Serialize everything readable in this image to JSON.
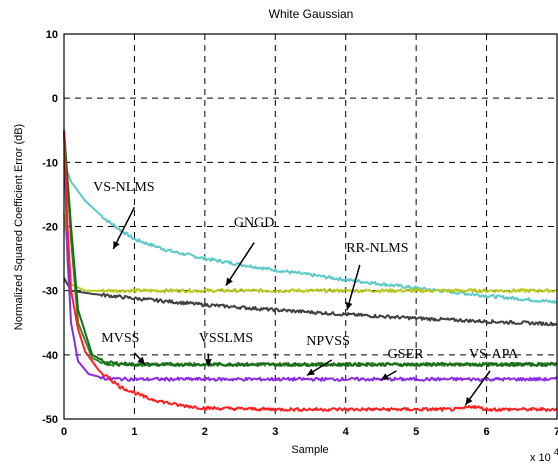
{
  "chart_data": {
    "type": "line",
    "title": "White Gaussian",
    "xlabel": "Sample",
    "ylabel": "Normalized Squared Coefficient Error (dB)",
    "x_multiplier": "x 10",
    "x_multiplier_exp": "4",
    "xlim": [
      0,
      7
    ],
    "ylim": [
      -50,
      10
    ],
    "xticks": [
      0,
      1,
      2,
      3,
      4,
      5,
      6,
      7
    ],
    "yticks": [
      10,
      0,
      -10,
      -20,
      -30,
      -40,
      -50
    ],
    "grid": true,
    "colors": {
      "VS-NLMS": "#5cc8c8",
      "GNGD": "#b8c81e",
      "RR-NLMS": "#404040",
      "MVSS": "#2e8a2e",
      "VSSLMS": "#1a6b1a",
      "NPVSS": "#2a7a2a",
      "GSER": "#8a2be2",
      "VS-APA": "#ff2020"
    },
    "series": [
      {
        "name": "VS-NLMS",
        "x": [
          0,
          0.1,
          0.3,
          0.6,
          1,
          1.5,
          2,
          3,
          4,
          5,
          6,
          7
        ],
        "y": [
          -10,
          -13,
          -16,
          -19,
          -22,
          -23.8,
          -25,
          -26.8,
          -28.3,
          -29.6,
          -30.8,
          -31.8
        ]
      },
      {
        "name": "GNGD",
        "x": [
          0,
          0.1,
          0.3,
          0.6,
          1,
          2,
          3,
          4,
          5,
          6,
          7
        ],
        "y": [
          -18,
          -29,
          -30,
          -30,
          -30,
          -30,
          -30,
          -30,
          -30,
          -30,
          -30
        ]
      },
      {
        "name": "RR-NLMS",
        "x": [
          0,
          0.1,
          0.4,
          1,
          2,
          3,
          4,
          5,
          6,
          7
        ],
        "y": [
          -28,
          -30,
          -30.5,
          -31.2,
          -32.2,
          -33,
          -33.7,
          -34.3,
          -34.8,
          -35.2
        ]
      },
      {
        "name": "MVSS",
        "x": [
          0,
          0.1,
          0.2,
          0.4,
          0.6,
          1,
          2,
          3,
          4,
          5,
          6,
          7
        ],
        "y": [
          -5,
          -22,
          -35,
          -40.5,
          -41.5,
          -41.5,
          -41.5,
          -41.5,
          -41.5,
          -41.5,
          -41.5,
          -41.5
        ]
      },
      {
        "name": "VSSLMS",
        "x": [
          0,
          0.1,
          0.2,
          0.4,
          0.6,
          1,
          2,
          3,
          4,
          5,
          6,
          7
        ],
        "y": [
          -5,
          -20,
          -33,
          -40,
          -41.2,
          -41.5,
          -41.5,
          -41.5,
          -41.5,
          -41.5,
          -41.5,
          -41.5
        ]
      },
      {
        "name": "GSER",
        "x": [
          0,
          0.05,
          0.1,
          0.2,
          0.35,
          0.6,
          1,
          2,
          3,
          4,
          5,
          6,
          7
        ],
        "y": [
          -5,
          -25,
          -35,
          -41,
          -43,
          -43.7,
          -43.8,
          -43.8,
          -43.8,
          -43.8,
          -43.8,
          -43.8,
          -43.8
        ]
      },
      {
        "name": "VS-APA",
        "x": [
          0,
          0.05,
          0.1,
          0.2,
          0.3,
          0.5,
          0.8,
          1.2,
          1.6,
          2,
          3,
          4,
          5,
          5.6,
          5.8,
          6,
          7
        ],
        "y": [
          -5,
          -20,
          -30,
          -36,
          -39.5,
          -42.5,
          -45,
          -46.8,
          -47.8,
          -48.3,
          -48.5,
          -48.5,
          -48.5,
          -48.5,
          -48,
          -48.5,
          -48.5
        ]
      }
    ],
    "annotations": [
      {
        "text": "VS-NLMS"
      },
      {
        "text": "GNGD"
      },
      {
        "text": "RR-NLMS"
      },
      {
        "text": "MVSS"
      },
      {
        "text": "VSSLMS"
      },
      {
        "text": "NPVSS"
      },
      {
        "text": "GSER"
      },
      {
        "text": "VS-APA"
      }
    ]
  }
}
